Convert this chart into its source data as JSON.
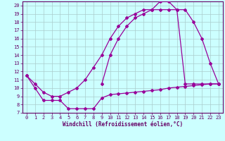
{
  "xlabel": "Windchill (Refroidissement éolien,°C)",
  "bg_color": "#ccffff",
  "grid_color": "#aacccc",
  "line_color": "#990099",
  "spine_color": "#660066",
  "tick_color": "#660066",
  "xlim": [
    -0.5,
    23.5
  ],
  "ylim": [
    7,
    20.5
  ],
  "yticks": [
    7,
    8,
    9,
    10,
    11,
    12,
    13,
    14,
    15,
    16,
    17,
    18,
    19,
    20
  ],
  "xticks": [
    0,
    1,
    2,
    3,
    4,
    5,
    6,
    7,
    8,
    9,
    10,
    11,
    12,
    13,
    14,
    15,
    16,
    17,
    18,
    19,
    20,
    21,
    22,
    23
  ],
  "s1_x": [
    0,
    1,
    2,
    3,
    4,
    5,
    6,
    7,
    8,
    9,
    10,
    11,
    12,
    13,
    14,
    15,
    16,
    17,
    18,
    19,
    20,
    21,
    22,
    23
  ],
  "s1_y": [
    11.5,
    10,
    8.5,
    8.5,
    8.5,
    7.5,
    7.5,
    7.5,
    7.5,
    8.8,
    9.2,
    9.3,
    9.4,
    9.5,
    9.6,
    9.7,
    9.8,
    10.0,
    10.1,
    10.2,
    10.3,
    10.4,
    10.5,
    10.5
  ],
  "s2_x": [
    9,
    10,
    11,
    12,
    13,
    14,
    15,
    16,
    17,
    18,
    19,
    20,
    21,
    22,
    23
  ],
  "s2_y": [
    10.5,
    14.0,
    16.0,
    17.5,
    18.5,
    19.0,
    19.5,
    20.5,
    20.5,
    19.5,
    19.5,
    18.0,
    16.0,
    13.0,
    10.5
  ],
  "s3_x": [
    0,
    1,
    2,
    3,
    4,
    5,
    6,
    7,
    8,
    9,
    10,
    11,
    12,
    13,
    14,
    15,
    16,
    17,
    18,
    19,
    20,
    21,
    22,
    23
  ],
  "s3_y": [
    11.5,
    10.5,
    9.5,
    9.0,
    9.0,
    9.5,
    10.0,
    11.0,
    12.5,
    14.0,
    16.0,
    17.5,
    18.5,
    19.0,
    19.5,
    19.5,
    19.5,
    19.5,
    19.5,
    10.5,
    10.5,
    10.5,
    10.5,
    10.5
  ],
  "xlabel_fontsize": 5.5,
  "tick_fontsize": 5,
  "linewidth": 0.9,
  "markersize": 2.0
}
